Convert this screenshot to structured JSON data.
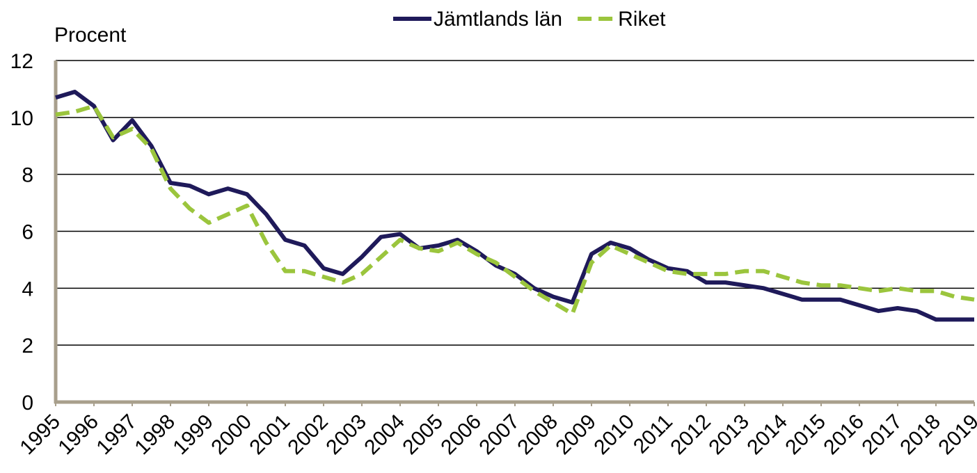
{
  "chart_data": {
    "type": "line",
    "y_label": "Procent",
    "x": [
      1995,
      1995.5,
      1996,
      1996.5,
      1997,
      1997.5,
      1998,
      1998.5,
      1999,
      1999.5,
      2000,
      2000.5,
      2001,
      2001.5,
      2002,
      2002.5,
      2003,
      2003.5,
      2004,
      2004.5,
      2005,
      2005.5,
      2006,
      2006.5,
      2007,
      2007.5,
      2008,
      2008.5,
      2009,
      2009.5,
      2010,
      2010.5,
      2011,
      2011.5,
      2012,
      2012.5,
      2013,
      2013.5,
      2014,
      2014.5,
      2015,
      2015.5,
      2016,
      2016.5,
      2017,
      2017.5,
      2018,
      2018.5,
      2019
    ],
    "series": [
      {
        "name": "Jämtlands län",
        "color": "#1f1a5a",
        "dashed": false,
        "values": [
          10.7,
          10.9,
          10.4,
          9.2,
          9.9,
          9.0,
          7.7,
          7.6,
          7.3,
          7.5,
          7.3,
          6.6,
          5.7,
          5.5,
          4.7,
          4.5,
          5.1,
          5.8,
          5.9,
          5.4,
          5.5,
          5.7,
          5.3,
          4.8,
          4.5,
          4.0,
          3.7,
          3.5,
          5.2,
          5.6,
          5.4,
          5.0,
          4.7,
          4.6,
          4.2,
          4.2,
          4.1,
          4.0,
          3.8,
          3.6,
          3.6,
          3.6,
          3.4,
          3.2,
          3.3,
          3.2,
          2.9,
          2.9,
          2.9
        ]
      },
      {
        "name": "Riket",
        "color": "#9bc53d",
        "dashed": true,
        "values": [
          10.1,
          10.2,
          10.4,
          9.3,
          9.6,
          8.9,
          7.5,
          6.8,
          6.3,
          6.6,
          6.9,
          5.6,
          4.6,
          4.6,
          4.4,
          4.2,
          4.5,
          5.1,
          5.7,
          5.4,
          5.3,
          5.6,
          5.2,
          4.9,
          4.4,
          3.9,
          3.5,
          3.1,
          4.9,
          5.5,
          5.2,
          4.9,
          4.6,
          4.5,
          4.5,
          4.5,
          4.6,
          4.6,
          4.4,
          4.2,
          4.1,
          4.1,
          4.0,
          3.9,
          4.0,
          3.9,
          3.9,
          3.7,
          3.6
        ]
      }
    ],
    "xlim": [
      1995,
      2019
    ],
    "xticks": [
      1995,
      1996,
      1997,
      1998,
      1999,
      2000,
      2001,
      2002,
      2003,
      2004,
      2005,
      2006,
      2007,
      2008,
      2009,
      2010,
      2011,
      2012,
      2013,
      2014,
      2015,
      2016,
      2017,
      2018,
      2019
    ],
    "ylim": [
      0,
      12
    ],
    "yticks": [
      0,
      2,
      4,
      6,
      8,
      10,
      12
    ],
    "grid": true,
    "legend": "top"
  }
}
